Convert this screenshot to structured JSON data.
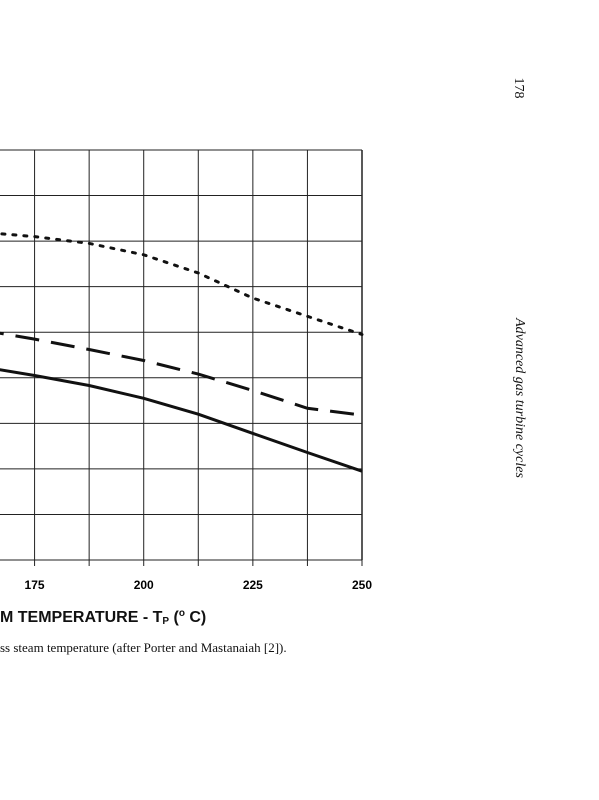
{
  "page_number": "178",
  "running_header": "Advanced gas turbine cycles",
  "caption": "ss steam temperature (after Porter and Mastanaiah [2]).",
  "xaxis": {
    "label_prefix": "M TEMPERATURE - T",
    "label_sub": "P",
    "label_mid": " (",
    "label_sup": "o",
    "label_suffix": " C)"
  },
  "chart_data": {
    "type": "line",
    "xlabel": "M TEMPERATURE - TP (°C)",
    "ylabel": "",
    "xlim": [
      162.5,
      250
    ],
    "ylim": [
      0,
      9
    ],
    "x_tick_labels": [
      "175",
      "200",
      "225",
      "250"
    ],
    "grid": true,
    "series": [
      {
        "style": "dotted",
        "x": [
          162.5,
          175,
          187.5,
          200,
          212.5,
          225,
          237.5,
          250
        ],
        "y": [
          7.2,
          7.1,
          6.95,
          6.7,
          6.3,
          5.75,
          5.35,
          4.95
        ]
      },
      {
        "style": "dashed",
        "x": [
          162.5,
          175,
          187.5,
          200,
          212.5,
          225,
          237.5,
          250
        ],
        "y": [
          5.05,
          4.85,
          4.62,
          4.38,
          4.08,
          3.72,
          3.33,
          3.18
        ]
      },
      {
        "style": "solid",
        "x": [
          162.5,
          175,
          187.5,
          200,
          212.5,
          225,
          237.5,
          250
        ],
        "y": [
          4.25,
          4.05,
          3.83,
          3.55,
          3.2,
          2.78,
          2.36,
          1.95
        ]
      }
    ]
  }
}
